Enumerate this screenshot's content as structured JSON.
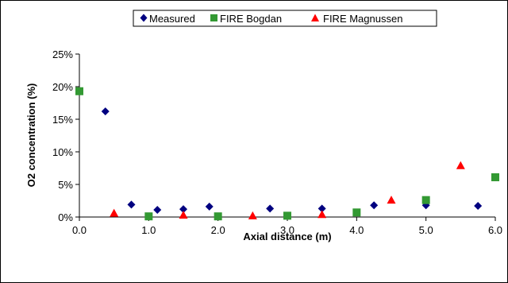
{
  "chart_data": {
    "type": "scatter",
    "title": "",
    "xlabel": "Axial distance (m)",
    "ylabel": "O2 concentration (%)",
    "xlim": [
      0,
      6
    ],
    "ylim": [
      0,
      25
    ],
    "x_ticks": [
      0,
      1,
      2,
      3,
      4,
      5,
      6
    ],
    "x_tick_labels": [
      "0.0",
      "1.0",
      "2.0",
      "3.0",
      "4.0",
      "5.0",
      "6.0"
    ],
    "y_ticks": [
      0,
      5,
      10,
      15,
      20,
      25
    ],
    "y_tick_labels": [
      "0%",
      "5%",
      "10%",
      "15%",
      "20%",
      "25%"
    ],
    "grid": false,
    "legend_position": "top",
    "series": [
      {
        "name": "Measured",
        "marker": "diamond",
        "color": "#000080",
        "points": [
          {
            "x": 0.375,
            "y": 16.2
          },
          {
            "x": 0.75,
            "y": 1.9
          },
          {
            "x": 1.125,
            "y": 1.1
          },
          {
            "x": 1.5,
            "y": 1.2
          },
          {
            "x": 1.875,
            "y": 1.6
          },
          {
            "x": 2.75,
            "y": 1.3
          },
          {
            "x": 3.5,
            "y": 1.3
          },
          {
            "x": 4.25,
            "y": 1.8
          },
          {
            "x": 5.0,
            "y": 1.8
          },
          {
            "x": 5.75,
            "y": 1.7
          }
        ]
      },
      {
        "name": "FIRE Bogdan",
        "marker": "square",
        "color": "#339933",
        "points": [
          {
            "x": 0.0,
            "y": 19.3
          },
          {
            "x": 1.0,
            "y": 0.1
          },
          {
            "x": 2.0,
            "y": 0.1
          },
          {
            "x": 3.0,
            "y": 0.2
          },
          {
            "x": 4.0,
            "y": 0.7
          },
          {
            "x": 5.0,
            "y": 2.6
          },
          {
            "x": 6.0,
            "y": 6.1
          }
        ]
      },
      {
        "name": "FIRE Magnussen",
        "marker": "triangle",
        "color": "#ff0000",
        "points": [
          {
            "x": 0.5,
            "y": 0.6
          },
          {
            "x": 1.5,
            "y": 0.3
          },
          {
            "x": 2.5,
            "y": 0.2
          },
          {
            "x": 3.5,
            "y": 0.4
          },
          {
            "x": 4.5,
            "y": 2.6
          },
          {
            "x": 5.5,
            "y": 7.9
          }
        ]
      }
    ]
  }
}
